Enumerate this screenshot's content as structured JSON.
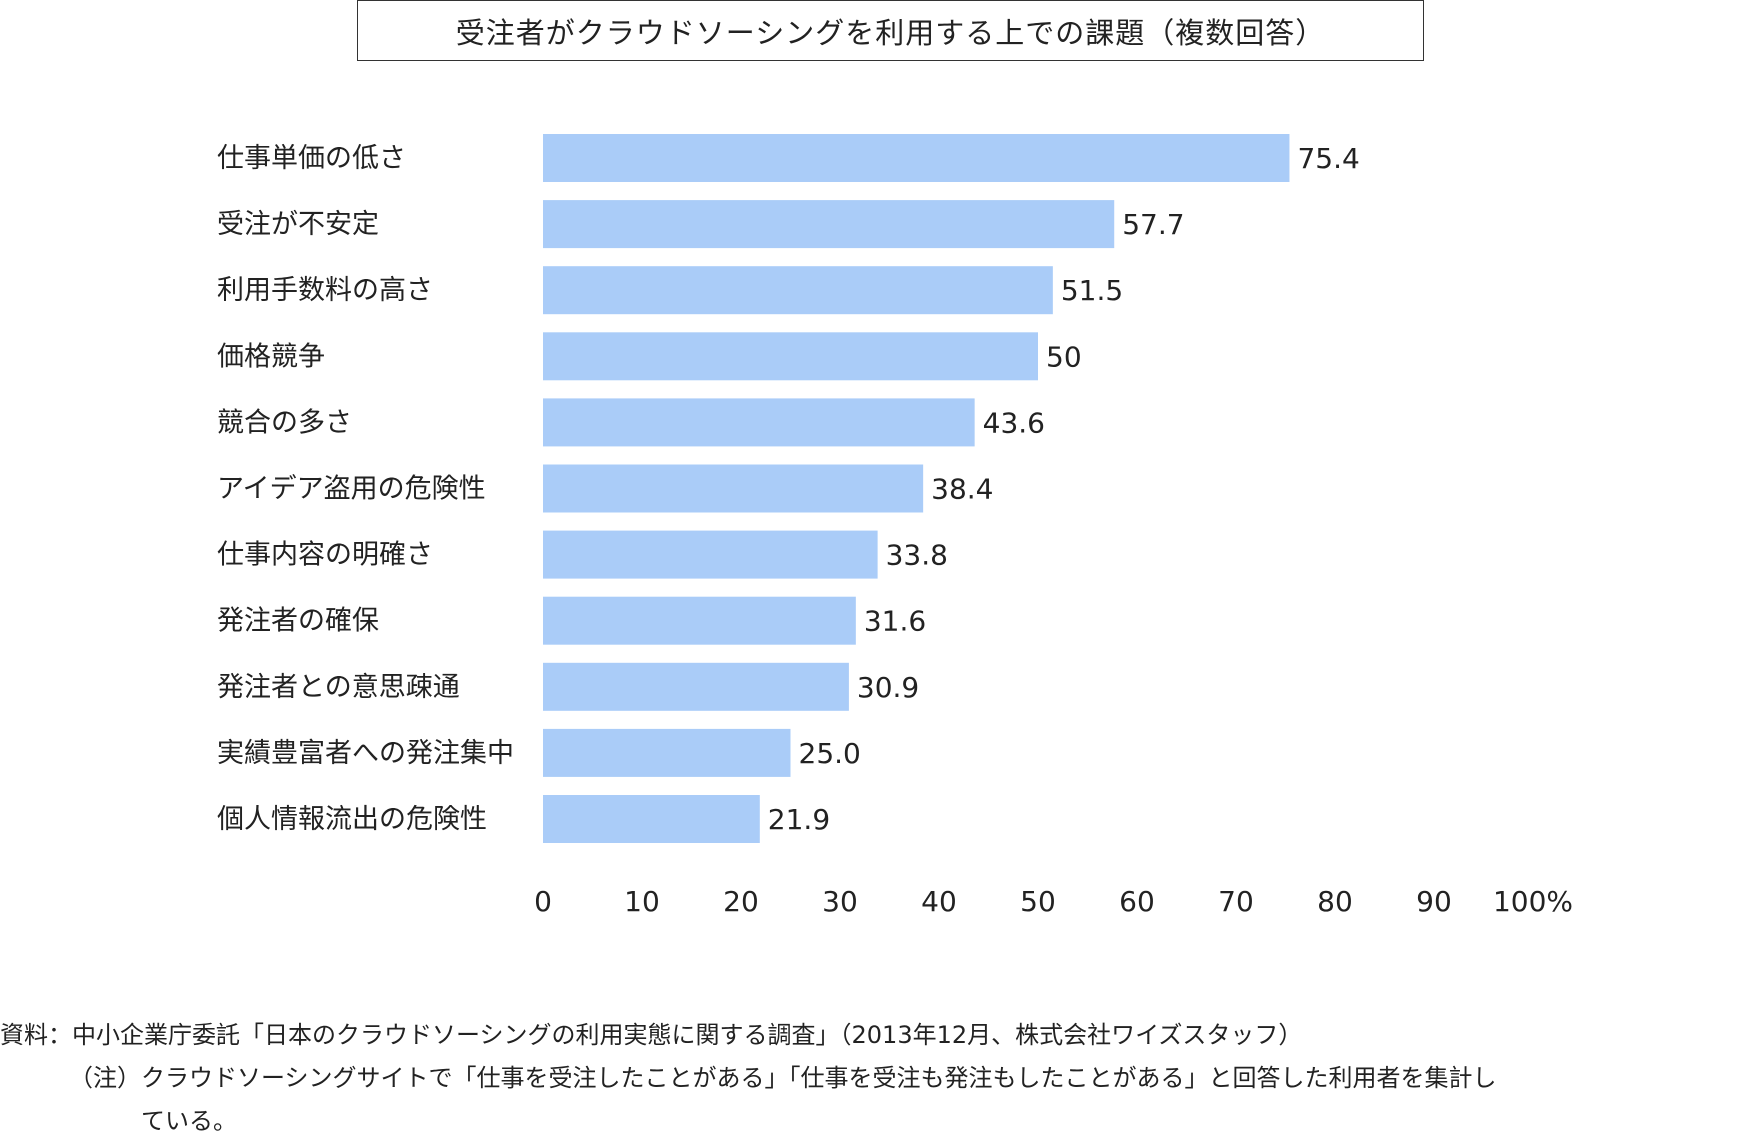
{
  "chart_data": {
    "type": "bar",
    "orientation": "horizontal",
    "title": "受注者がクラウドソーシングを利用する上での課題（複数回答）",
    "categories": [
      "仕事単価の低さ",
      "受注が不安定",
      "利用手数料の高さ",
      "価格競争",
      "競合の多さ",
      "アイデア盗用の危険性",
      "仕事内容の明確さ",
      "発注者の確保",
      "発注者との意思疎通",
      "実績豊富者への発注集中",
      "個人情報流出の危険性"
    ],
    "values": [
      75.4,
      57.7,
      51.5,
      50,
      43.6,
      38.4,
      33.8,
      31.6,
      30.9,
      25.0,
      21.9
    ],
    "value_labels": [
      "75.4",
      "57.7",
      "51.5",
      "50",
      "43.6",
      "38.4",
      "33.8",
      "31.6",
      "30.9",
      "25.0",
      "21.9"
    ],
    "x_ticks": [
      "0",
      "10",
      "20",
      "30",
      "40",
      "50",
      "60",
      "70",
      "80",
      "90",
      "100%"
    ],
    "xlim": [
      0,
      100
    ],
    "bar_color": "#aaccf8",
    "grid": false,
    "legend": false
  },
  "notes": {
    "source": "資料：中小企業庁委託「日本のクラウドソーシングの利用実態に関する調査」（2013年12月、株式会社ワイズスタッフ）",
    "note_line1": "（注）クラウドソーシングサイトで「仕事を受注したことがある」「仕事を受注も発注もしたことがある」と回答した利用者を集計し",
    "note_line2": "ている。"
  }
}
